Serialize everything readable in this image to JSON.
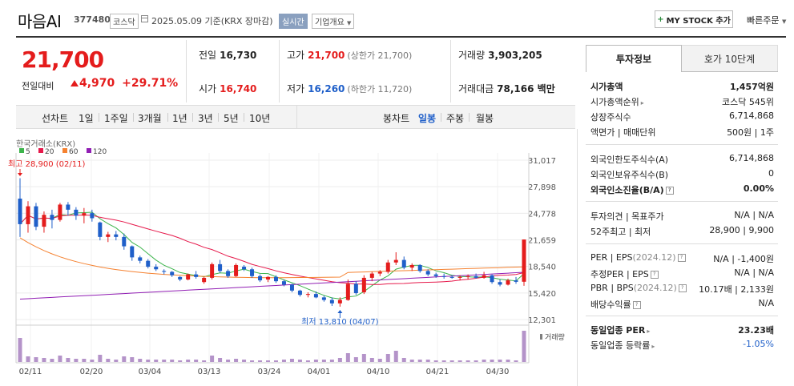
{
  "header": {
    "name": "마음AI",
    "code": "377480",
    "market": "코스닥",
    "date_text": "2025.05.09 기준(KRX 장마감)",
    "live_label": "실시간",
    "company_info_label": "기업개요",
    "mystock_label": "MY STOCK 추가",
    "quick_order_label": "빠른주문"
  },
  "price": {
    "current": "21,700",
    "change_label": "전일대비",
    "change_value": "4,970",
    "change_rate": "+29.71%"
  },
  "quote": {
    "prev_close": {
      "label": "전일",
      "value": "16,730"
    },
    "high": {
      "label": "고가",
      "value": "21,700",
      "sub": "(상한가 21,700)"
    },
    "volume": {
      "label": "거래량",
      "value": "3,903,205"
    },
    "open": {
      "label": "시가",
      "value": "16,740"
    },
    "low": {
      "label": "저가",
      "value": "16,260",
      "sub": "(하한가 11,720)"
    },
    "amount": {
      "label": "거래대금",
      "value": "78,166 백만"
    }
  },
  "periods": {
    "line_label": "선차트",
    "line_items": [
      "1일",
      "1주일",
      "3개월",
      "1년",
      "3년",
      "5년",
      "10년"
    ],
    "candle_label": "봉차트",
    "candle_items": [
      "일봉",
      "주봉",
      "월봉"
    ],
    "candle_active": "일봉"
  },
  "chart_data": {
    "type": "candlestick",
    "source_label": "한국거래소(KRX)",
    "moving_averages": [
      {
        "name": "5",
        "color": "#3cb44b"
      },
      {
        "name": "20",
        "color": "#e6194b"
      },
      {
        "name": "60",
        "color": "#f58231"
      },
      {
        "name": "120",
        "color": "#911eb4"
      }
    ],
    "y_ticks": [
      "31,017",
      "27,898",
      "24,778",
      "21,659",
      "18,540",
      "15,420",
      "12,301"
    ],
    "ylim": [
      12301,
      31017
    ],
    "x_ticks": [
      "02/11",
      "02/20",
      "03/04",
      "03/13",
      "03/24",
      "04/01",
      "04/10",
      "04/21",
      "04/30"
    ],
    "high_annotation": "최고 28,900 (02/11)",
    "low_annotation": "최저 13,810 (04/07)",
    "volume_label": "거래량",
    "candles": [
      [
        26500,
        28900,
        22000,
        23500
      ],
      [
        23500,
        26200,
        22500,
        25600
      ],
      [
        25600,
        26000,
        22800,
        23200
      ],
      [
        23200,
        25000,
        22500,
        24600
      ],
      [
        24600,
        25200,
        23000,
        24000
      ],
      [
        24000,
        26000,
        23800,
        25800
      ],
      [
        25800,
        26100,
        24500,
        25200
      ],
      [
        25200,
        25500,
        24000,
        24500
      ],
      [
        24500,
        25400,
        23600,
        24800
      ],
      [
        24800,
        25200,
        23800,
        24200
      ],
      [
        23700,
        23800,
        21600,
        22000
      ],
      [
        22000,
        22600,
        21400,
        22300
      ],
      [
        22300,
        22700,
        21600,
        22000
      ],
      [
        22000,
        22400,
        20500,
        20900
      ],
      [
        20900,
        21000,
        19200,
        19600
      ],
      [
        19600,
        19800,
        18900,
        19200
      ],
      [
        19200,
        19400,
        18300,
        18500
      ],
      [
        18500,
        18800,
        18000,
        18200
      ],
      [
        18000,
        18200,
        17600,
        17900
      ],
      [
        17900,
        18000,
        17300,
        17500
      ],
      [
        17300,
        17400,
        16800,
        17000
      ],
      [
        17000,
        17700,
        16900,
        17600
      ],
      [
        17600,
        18000,
        17100,
        17300
      ],
      [
        16700,
        17300,
        16500,
        17200
      ],
      [
        17200,
        19000,
        17000,
        18800
      ],
      [
        18800,
        19300,
        17800,
        18000
      ],
      [
        18000,
        18200,
        17200,
        17400
      ],
      [
        17400,
        18900,
        17300,
        18700
      ],
      [
        18500,
        18700,
        18000,
        18200
      ],
      [
        18200,
        18400,
        17200,
        17400
      ],
      [
        17400,
        17600,
        16700,
        16900
      ],
      [
        17000,
        17400,
        16700,
        17300
      ],
      [
        17300,
        17500,
        16600,
        16800
      ],
      [
        16800,
        17000,
        16200,
        16400
      ],
      [
        16400,
        16500,
        15500,
        15700
      ],
      [
        15700,
        15800,
        15000,
        15200
      ],
      [
        15200,
        15500,
        14900,
        15300
      ],
      [
        15300,
        15600,
        14800,
        14900
      ],
      [
        14900,
        15100,
        14400,
        14600
      ],
      [
        14600,
        14900,
        13900,
        14200
      ],
      [
        14200,
        14900,
        13810,
        14600
      ],
      [
        14600,
        17000,
        14500,
        16500
      ],
      [
        16500,
        16800,
        15200,
        15400
      ],
      [
        15500,
        17500,
        15300,
        17200
      ],
      [
        17200,
        17900,
        16800,
        17700
      ],
      [
        17700,
        18100,
        17400,
        17900
      ],
      [
        17900,
        19300,
        17700,
        19000
      ],
      [
        19000,
        20200,
        18700,
        19300
      ],
      [
        19300,
        19700,
        18200,
        18400
      ],
      [
        18400,
        18900,
        18000,
        18700
      ],
      [
        18700,
        18800,
        17800,
        18000
      ],
      [
        18000,
        18200,
        17400,
        17600
      ],
      [
        17600,
        17800,
        17200,
        17400
      ],
      [
        17400,
        17700,
        17100,
        17300
      ],
      [
        17300,
        17500,
        17100,
        17200
      ],
      [
        17200,
        17500,
        16900,
        17300
      ],
      [
        17300,
        17600,
        17000,
        17400
      ],
      [
        17400,
        17700,
        17100,
        17200
      ],
      [
        17200,
        17900,
        17100,
        17500
      ],
      [
        17500,
        17600,
        16500,
        16700
      ],
      [
        16700,
        17000,
        16200,
        16400
      ],
      [
        16400,
        17100,
        16300,
        16900
      ],
      [
        16900,
        17300,
        16500,
        16730
      ],
      [
        16740,
        21700,
        16260,
        21700
      ]
    ],
    "volume": [
      3.0,
      0.7,
      0.6,
      0.5,
      0.4,
      0.8,
      0.5,
      0.4,
      0.4,
      0.3,
      0.9,
      0.4,
      0.3,
      0.7,
      0.6,
      0.4,
      0.3,
      0.3,
      0.3,
      0.3,
      0.2,
      0.3,
      0.3,
      0.2,
      0.8,
      0.5,
      0.3,
      0.4,
      0.3,
      0.2,
      0.2,
      0.2,
      0.2,
      0.3,
      0.4,
      0.3,
      0.2,
      0.3,
      0.3,
      0.3,
      0.5,
      1.1,
      0.6,
      1.0,
      0.5,
      0.4,
      1.0,
      1.4,
      0.5,
      0.3,
      0.3,
      0.3,
      0.2,
      0.2,
      0.2,
      0.2,
      0.2,
      0.2,
      0.3,
      0.3,
      0.3,
      0.3,
      0.2,
      3.9
    ]
  },
  "side": {
    "tab_active": "투자정보",
    "tab_other": "호가 10단계",
    "rows1": [
      {
        "k": "시가총액",
        "v": "1,457억원",
        "bold": true
      },
      {
        "k": "시가총액순위",
        "v": "코스닥 545위",
        "arrow": true
      },
      {
        "k": "상장주식수",
        "v": "6,714,868"
      },
      {
        "k": "액면가 | 매매단위",
        "v": "500원 | 1주"
      }
    ],
    "rows2": [
      {
        "k": "외국인한도주식수(A)",
        "v": "6,714,868"
      },
      {
        "k": "외국인보유주식수(B)",
        "v": "0"
      },
      {
        "k": "외국인소진율(B/A)",
        "v": "0.00%",
        "bold": true,
        "q": true
      }
    ],
    "rows3": [
      {
        "k": "투자의견 | 목표주가",
        "v": "N/A | N/A"
      },
      {
        "k": "52주최고 | 최저",
        "v": "28,900 | 9,900"
      }
    ],
    "rows4": [
      {
        "k": "PER | EPS",
        "k2": "(2024.12)",
        "v": "N/A | -1,400원",
        "q": true
      },
      {
        "k": "추정PER | EPS",
        "v": "N/A | N/A",
        "q": true
      },
      {
        "k": "PBR | BPS",
        "k2": "(2024.12)",
        "v": "10.17배 | 2,133원",
        "q": true
      },
      {
        "k": "배당수익률",
        "v": "N/A",
        "q": true
      }
    ],
    "rows5": [
      {
        "k": "동일업종 PER",
        "v": "23.23배",
        "bold": true,
        "arrow": true
      },
      {
        "k": "동일업종 등락률",
        "v": "-1.05%",
        "arrow": true,
        "blue": true
      }
    ]
  }
}
